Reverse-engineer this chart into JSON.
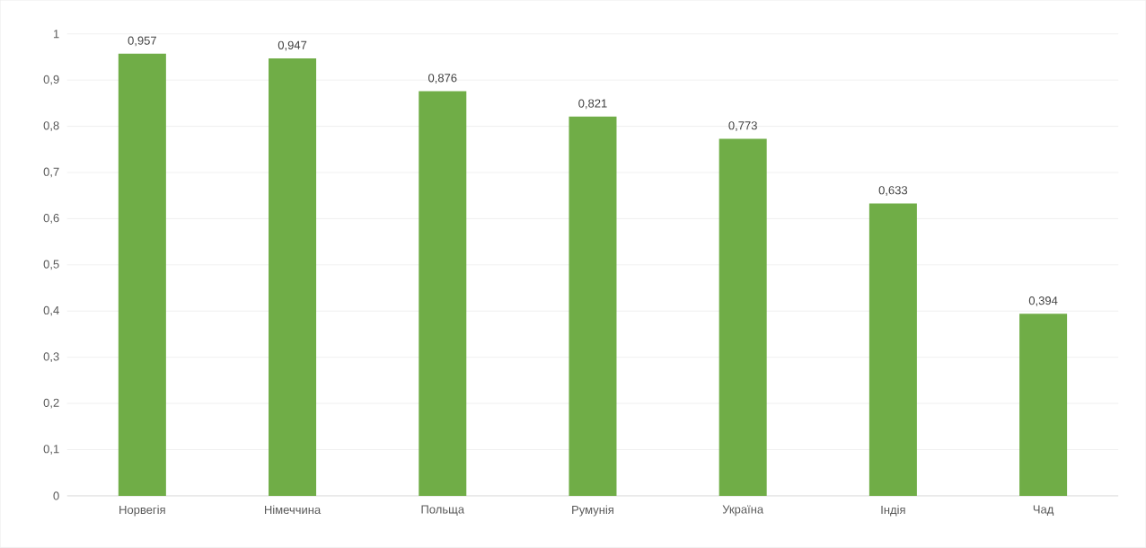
{
  "chart_data": {
    "type": "bar",
    "categories": [
      "Норвегія",
      "Німеччина",
      "Польща",
      "Румунія",
      "Україна",
      "Індія",
      "Чад"
    ],
    "values": [
      0.957,
      0.947,
      0.876,
      0.821,
      0.773,
      0.633,
      0.394
    ],
    "value_labels": [
      "0,957",
      "0,947",
      "0,876",
      "0,821",
      "0,773",
      "0,633",
      "0,394"
    ],
    "color": "#70ad47",
    "ylim": [
      0,
      1
    ],
    "yticks": [
      0,
      {
        "value": 0.1,
        "label": "0,1"
      },
      {
        "value": 0.2,
        "label": "0,2"
      },
      {
        "value": 0.3,
        "label": "0,3"
      },
      {
        "value": 0.4,
        "label": "0,4"
      },
      {
        "value": 0.5,
        "label": "0,5"
      },
      {
        "value": 0.6,
        "label": "0,6"
      },
      {
        "value": 0.7,
        "label": "0,7"
      },
      {
        "value": 0.8,
        "label": "0,8"
      },
      {
        "value": 0.9,
        "label": "0,9"
      },
      1
    ],
    "grid": "y"
  }
}
